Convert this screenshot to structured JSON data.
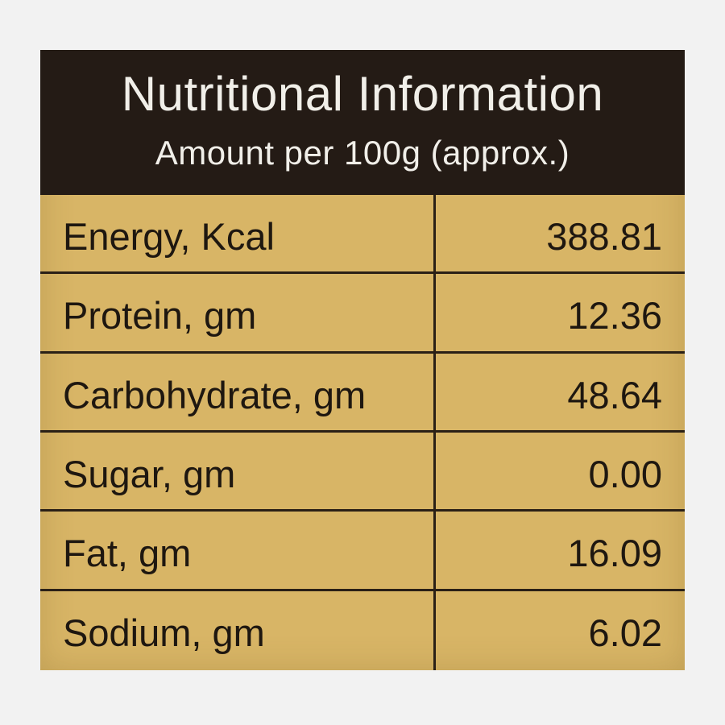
{
  "header": {
    "title": "Nutritional Information",
    "subtitle": "Amount per 100g (approx.)"
  },
  "table": {
    "rows": [
      [
        "Energy, Kcal",
        "388.81"
      ],
      [
        "Protein, gm",
        "12.36"
      ],
      [
        "Carbohydrate, gm",
        "48.64"
      ],
      [
        "Sugar, gm",
        "0.00"
      ],
      [
        "Fat, gm",
        "16.09"
      ],
      [
        "Sodium, gm",
        "6.02"
      ]
    ]
  }
}
